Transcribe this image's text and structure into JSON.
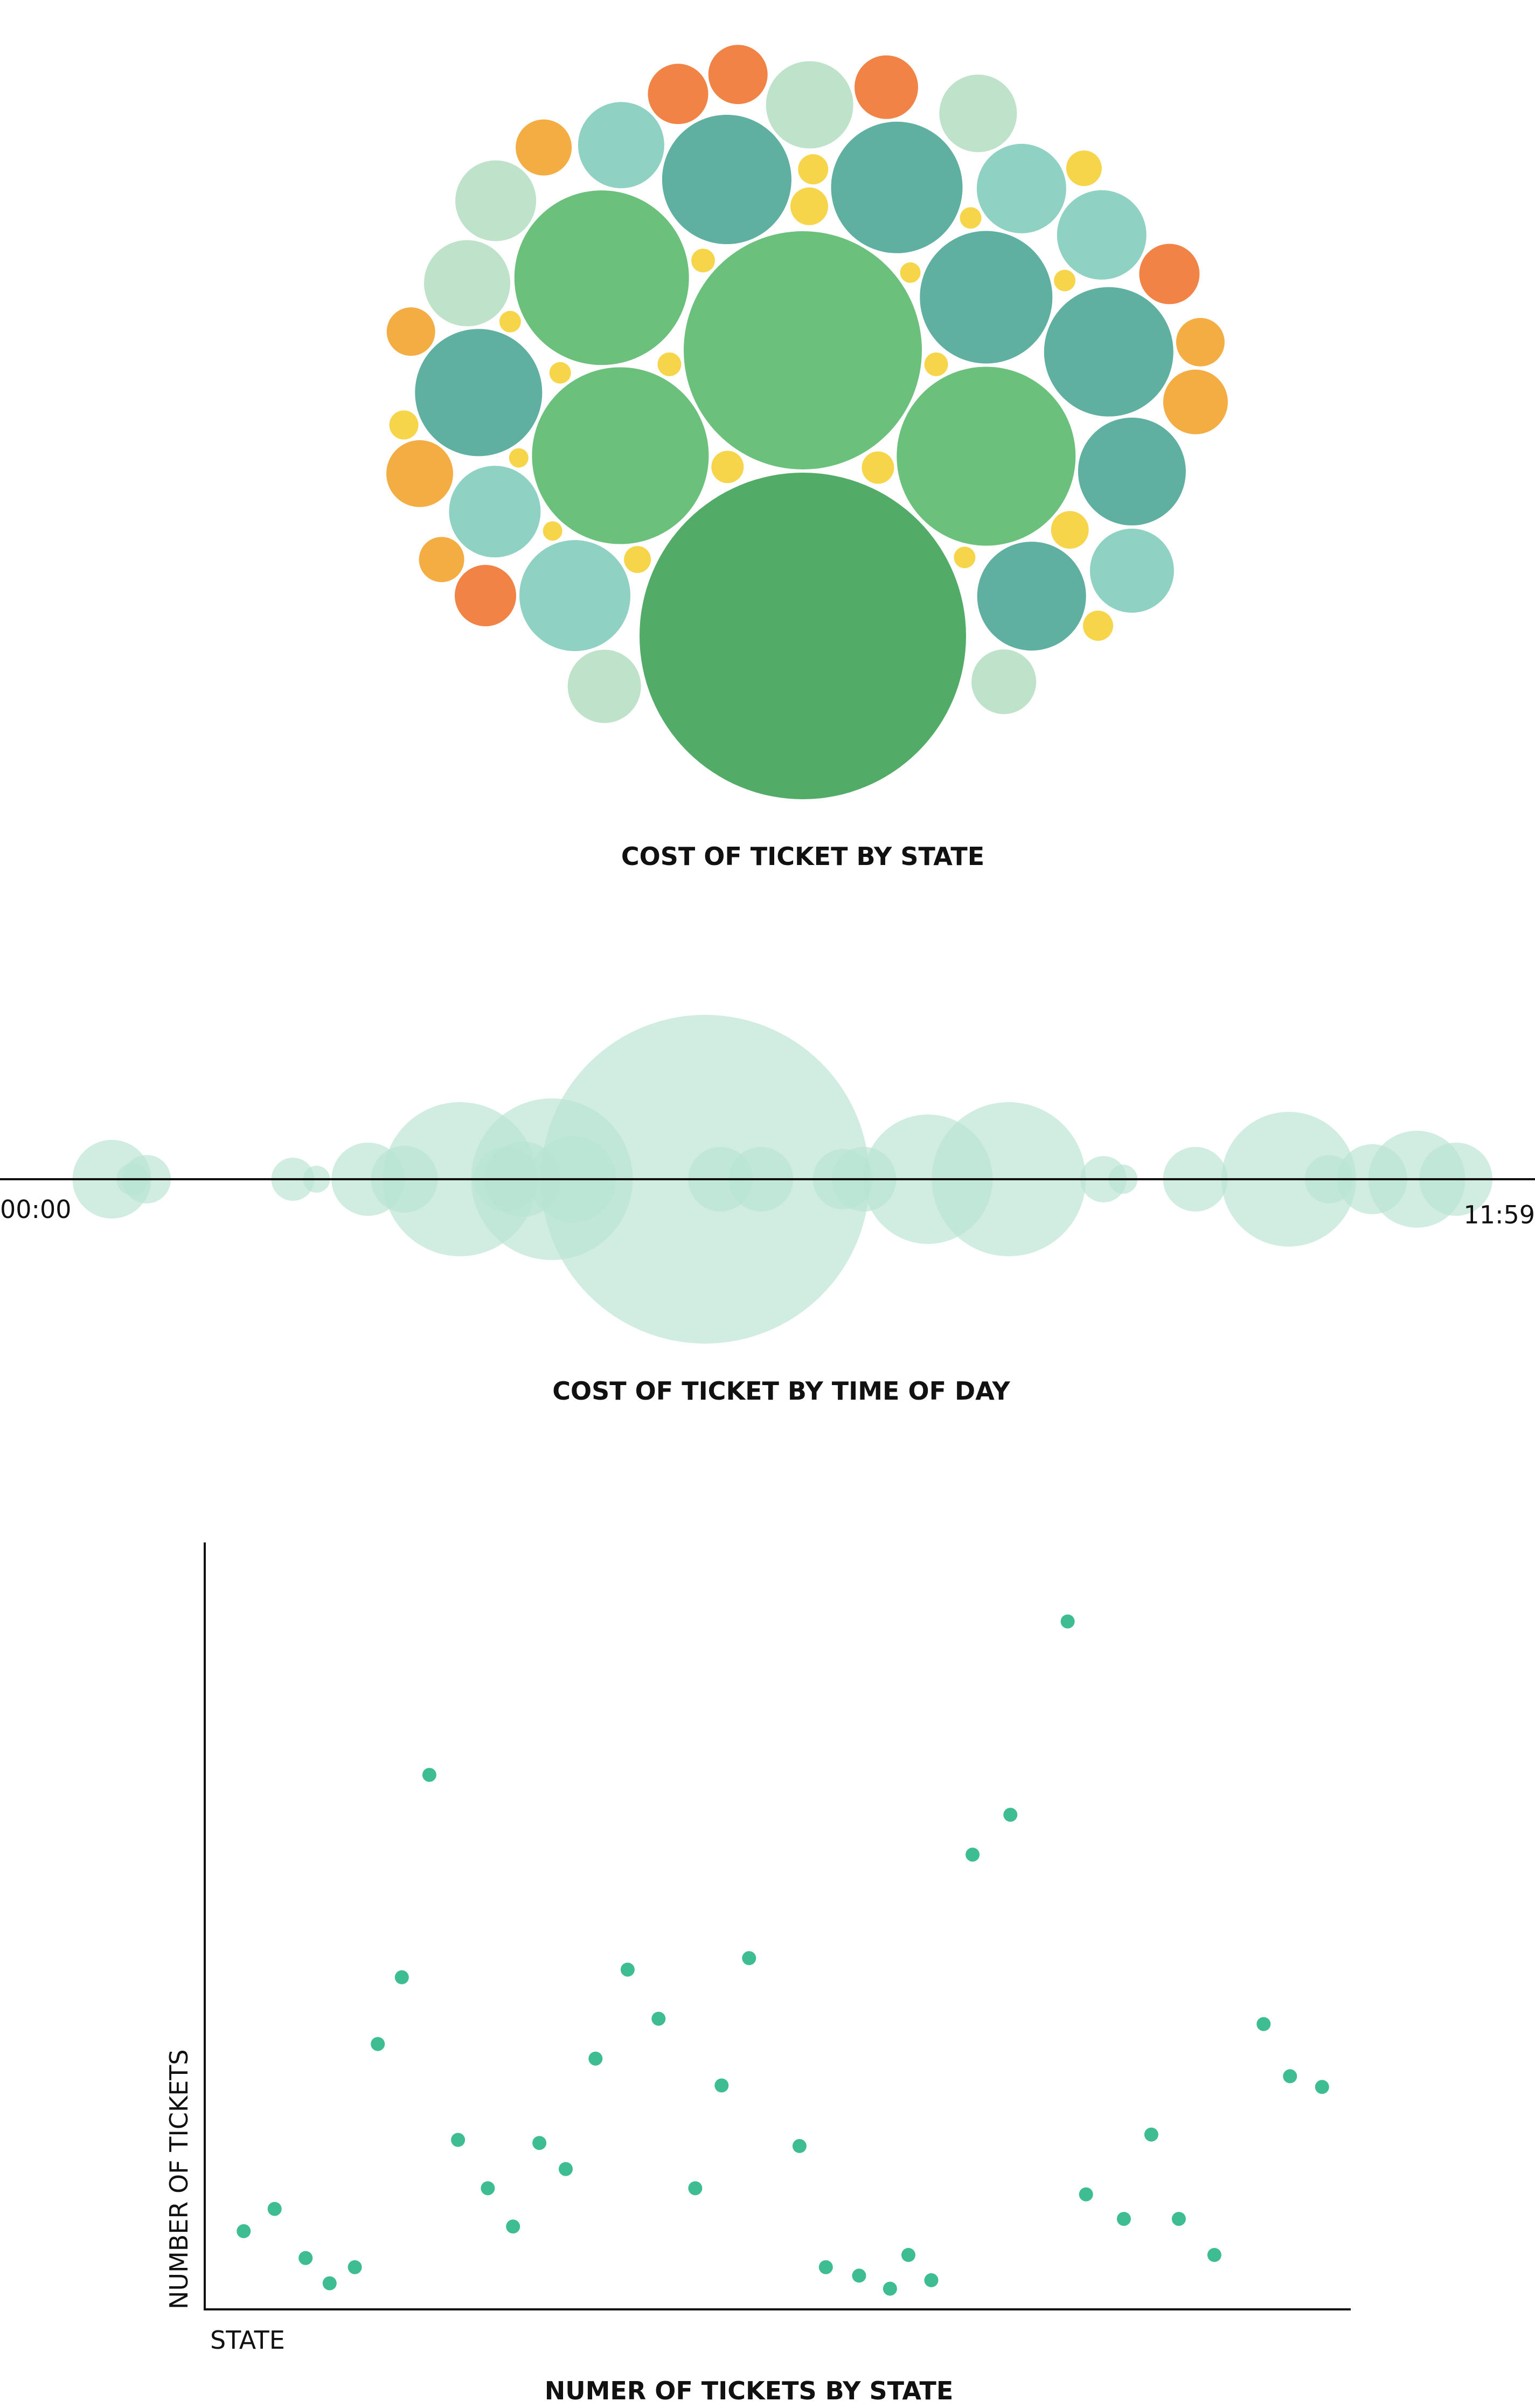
{
  "colors": {
    "dark_green": "#52ab66",
    "green": "#6bc07b",
    "teal": "#5fb0a0",
    "light_teal": "#8fd2c3",
    "pale_green": "#bfe2ca",
    "orange": "#f28346",
    "amber": "#f4ad42",
    "yellow": "#f7d54b",
    "timeline_bubble": "#b9e4d3",
    "scatter_dot": "#3ebd93",
    "axis": "#111111"
  },
  "chart_data": [
    {
      "type": "bubble-pack",
      "title": "COST OF TICKET BY STATE",
      "bubbles": [
        {
          "v": 303,
          "c": "dark_green"
        },
        {
          "v": 221,
          "c": "green"
        },
        {
          "v": 166,
          "c": "green"
        },
        {
          "v": 164,
          "c": "green"
        },
        {
          "v": 162,
          "c": "green"
        },
        {
          "v": 123,
          "c": "teal"
        },
        {
          "v": 122,
          "c": "teal"
        },
        {
          "v": 120,
          "c": "teal"
        },
        {
          "v": 120,
          "c": "teal"
        },
        {
          "v": 118,
          "c": "teal"
        },
        {
          "v": 101,
          "c": "teal"
        },
        {
          "v": 100,
          "c": "teal"
        },
        {
          "v": 103,
          "c": "light_teal"
        },
        {
          "v": 85,
          "c": "light_teal"
        },
        {
          "v": 83,
          "c": "light_teal"
        },
        {
          "v": 83,
          "c": "light_teal"
        },
        {
          "v": 80,
          "c": "light_teal"
        },
        {
          "v": 78,
          "c": "light_teal"
        },
        {
          "v": 81,
          "c": "pale_green"
        },
        {
          "v": 80,
          "c": "pale_green"
        },
        {
          "v": 75,
          "c": "pale_green"
        },
        {
          "v": 72,
          "c": "pale_green"
        },
        {
          "v": 68,
          "c": "pale_green"
        },
        {
          "v": 60,
          "c": "pale_green"
        },
        {
          "v": 59,
          "c": "orange"
        },
        {
          "v": 57,
          "c": "orange"
        },
        {
          "v": 56,
          "c": "orange"
        },
        {
          "v": 56,
          "c": "orange"
        },
        {
          "v": 55,
          "c": "orange"
        },
        {
          "v": 62,
          "c": "amber"
        },
        {
          "v": 60,
          "c": "amber"
        },
        {
          "v": 52,
          "c": "amber"
        },
        {
          "v": 45,
          "c": "amber"
        },
        {
          "v": 45,
          "c": "amber"
        },
        {
          "v": 42,
          "c": "amber"
        },
        {
          "v": 35,
          "c": "yellow"
        },
        {
          "v": 35,
          "c": "yellow"
        },
        {
          "v": 33,
          "c": "yellow"
        },
        {
          "v": 30,
          "c": "yellow"
        },
        {
          "v": 30,
          "c": "yellow"
        },
        {
          "v": 28,
          "c": "yellow"
        },
        {
          "v": 28,
          "c": "yellow"
        },
        {
          "v": 27,
          "c": "yellow"
        },
        {
          "v": 25,
          "c": "yellow"
        },
        {
          "v": 22,
          "c": "yellow"
        },
        {
          "v": 22,
          "c": "yellow"
        },
        {
          "v": 22,
          "c": "yellow"
        },
        {
          "v": 20,
          "c": "yellow"
        },
        {
          "v": 20,
          "c": "yellow"
        },
        {
          "v": 20,
          "c": "yellow"
        },
        {
          "v": 20,
          "c": "yellow"
        },
        {
          "v": 20,
          "c": "yellow"
        },
        {
          "v": 19,
          "c": "yellow"
        },
        {
          "v": 18,
          "c": "yellow"
        },
        {
          "v": 18,
          "c": "yellow"
        }
      ]
    },
    {
      "type": "bubble-timeline",
      "title": "COST OF TICKET BY TIME OF DAY",
      "x_start_label": "00:00",
      "x_end_label": "11:59",
      "bubbles": [
        {
          "t": 0.03,
          "v": 73
        },
        {
          "t": 0.045,
          "v": 30
        },
        {
          "t": 0.055,
          "v": 45
        },
        {
          "t": 0.16,
          "v": 40
        },
        {
          "t": 0.177,
          "v": 25
        },
        {
          "t": 0.214,
          "v": 68
        },
        {
          "t": 0.24,
          "v": 62
        },
        {
          "t": 0.28,
          "v": 143
        },
        {
          "t": 0.313,
          "v": 60
        },
        {
          "t": 0.325,
          "v": 70
        },
        {
          "t": 0.346,
          "v": 150
        },
        {
          "t": 0.361,
          "v": 80
        },
        {
          "t": 0.456,
          "v": 305
        },
        {
          "t": 0.467,
          "v": 60
        },
        {
          "t": 0.496,
          "v": 60
        },
        {
          "t": 0.555,
          "v": 56
        },
        {
          "t": 0.57,
          "v": 60
        },
        {
          "t": 0.616,
          "v": 120
        },
        {
          "t": 0.674,
          "v": 143
        },
        {
          "t": 0.742,
          "v": 43
        },
        {
          "t": 0.756,
          "v": 27
        },
        {
          "t": 0.808,
          "v": 60
        },
        {
          "t": 0.875,
          "v": 125
        },
        {
          "t": 0.904,
          "v": 45
        },
        {
          "t": 0.935,
          "v": 65
        },
        {
          "t": 0.967,
          "v": 90
        },
        {
          "t": 0.995,
          "v": 68
        }
      ]
    },
    {
      "type": "scatter",
      "title": "NUMER OF TICKETS BY STATE",
      "xlabel": "STATE",
      "ylabel": "NUMBER OF TICKETS",
      "xlim": [
        0,
        100
      ],
      "ylim": [
        0,
        100
      ],
      "points": [
        {
          "x": 3.4,
          "y": 10.2
        },
        {
          "x": 6.1,
          "y": 13.1
        },
        {
          "x": 8.8,
          "y": 6.7
        },
        {
          "x": 10.9,
          "y": 3.4
        },
        {
          "x": 13.1,
          "y": 5.5
        },
        {
          "x": 15.1,
          "y": 34.6
        },
        {
          "x": 17.2,
          "y": 43.3
        },
        {
          "x": 19.6,
          "y": 69.7
        },
        {
          "x": 22.1,
          "y": 22.1
        },
        {
          "x": 24.7,
          "y": 15.8
        },
        {
          "x": 26.9,
          "y": 10.8
        },
        {
          "x": 29.2,
          "y": 21.7
        },
        {
          "x": 31.5,
          "y": 18.3
        },
        {
          "x": 34.1,
          "y": 32.7
        },
        {
          "x": 36.9,
          "y": 44.3
        },
        {
          "x": 39.6,
          "y": 37.9
        },
        {
          "x": 42.8,
          "y": 15.8
        },
        {
          "x": 45.1,
          "y": 29.2
        },
        {
          "x": 47.5,
          "y": 45.8
        },
        {
          "x": 51.9,
          "y": 21.3
        },
        {
          "x": 54.2,
          "y": 5.5
        },
        {
          "x": 57.1,
          "y": 4.4
        },
        {
          "x": 59.8,
          "y": 2.7
        },
        {
          "x": 61.4,
          "y": 7.1
        },
        {
          "x": 63.4,
          "y": 3.8
        },
        {
          "x": 67.0,
          "y": 59.3
        },
        {
          "x": 70.3,
          "y": 64.5
        },
        {
          "x": 75.3,
          "y": 89.7
        },
        {
          "x": 76.9,
          "y": 15.0
        },
        {
          "x": 80.2,
          "y": 11.8
        },
        {
          "x": 82.6,
          "y": 22.8
        },
        {
          "x": 85.0,
          "y": 11.8
        },
        {
          "x": 88.1,
          "y": 7.1
        },
        {
          "x": 92.4,
          "y": 37.2
        },
        {
          "x": 94.7,
          "y": 30.4
        },
        {
          "x": 97.5,
          "y": 29.0
        }
      ]
    }
  ]
}
